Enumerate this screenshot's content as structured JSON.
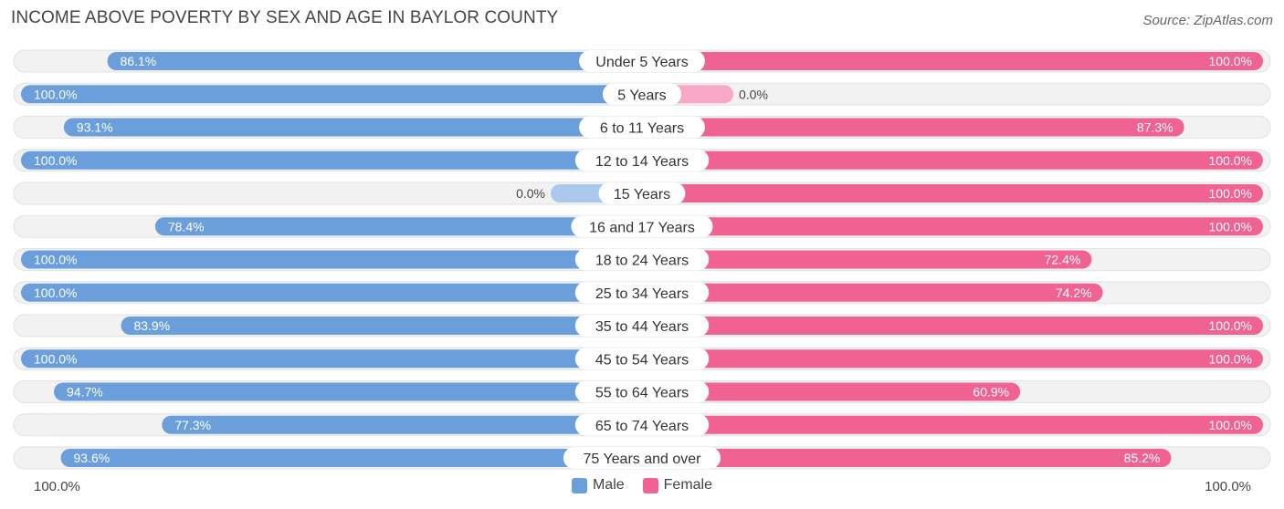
{
  "title": "INCOME ABOVE POVERTY BY SEX AND AGE IN BAYLOR COUNTY",
  "source": "Source: ZipAtlas.com",
  "colors": {
    "male": "#6a9fdb",
    "male_light": "#a9c8ec",
    "female": "#f06292",
    "female_light": "#f7a8c4",
    "track": "#f0f0f0"
  },
  "chart_data": {
    "type": "bar",
    "orientation": "horizontal-diverging",
    "title": "INCOME ABOVE POVERTY BY SEX AND AGE IN BAYLOR COUNTY",
    "categories": [
      "Under 5 Years",
      "5 Years",
      "6 to 11 Years",
      "12 to 14 Years",
      "15 Years",
      "16 and 17 Years",
      "18 to 24 Years",
      "25 to 34 Years",
      "35 to 44 Years",
      "45 to 54 Years",
      "55 to 64 Years",
      "65 to 74 Years",
      "75 Years and over"
    ],
    "series": [
      {
        "name": "Male",
        "values": [
          86.1,
          100.0,
          93.1,
          100.0,
          0.0,
          78.4,
          100.0,
          100.0,
          83.9,
          100.0,
          94.7,
          77.3,
          93.6
        ],
        "labels": [
          "86.1%",
          "100.0%",
          "93.1%",
          "100.0%",
          "0.0%",
          "78.4%",
          "100.0%",
          "100.0%",
          "83.9%",
          "100.0%",
          "94.7%",
          "77.3%",
          "93.6%"
        ]
      },
      {
        "name": "Female",
        "values": [
          100.0,
          0.0,
          87.3,
          100.0,
          100.0,
          100.0,
          72.4,
          74.2,
          100.0,
          100.0,
          60.9,
          100.0,
          85.2
        ],
        "labels": [
          "100.0%",
          "0.0%",
          "87.3%",
          "100.0%",
          "100.0%",
          "100.0%",
          "72.4%",
          "74.2%",
          "100.0%",
          "100.0%",
          "60.9%",
          "100.0%",
          "85.2%"
        ]
      }
    ],
    "xlim": [
      -100,
      100
    ],
    "axis_left_label": "100.0%",
    "axis_right_label": "100.0%",
    "legend": [
      "Male",
      "Female"
    ]
  }
}
